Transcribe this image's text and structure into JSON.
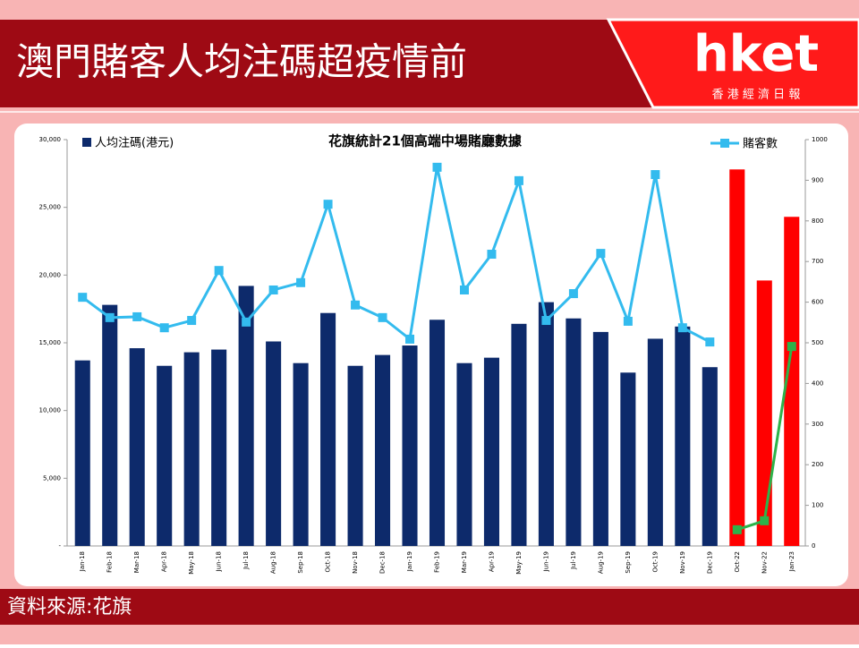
{
  "header": {
    "title": "澳門賭客人均注碼超疫情前"
  },
  "logo": {
    "name": "hket",
    "sub": "香 港 經 濟 日 報"
  },
  "footer": {
    "source": "資料來源:花旗"
  },
  "chart_data": {
    "type": "bar-line",
    "title": "花旗統計21個高端中場賭廳數據",
    "categories": [
      "Jan-18",
      "Feb-18",
      "Mar-18",
      "Apr-18",
      "May-18",
      "Jun-18",
      "Jul-18",
      "Aug-18",
      "Sep-18",
      "Oct-18",
      "Nov-18",
      "Dec-18",
      "Jan-19",
      "Feb-19",
      "Mar-19",
      "Apr-19",
      "May-19",
      "Jun-19",
      "Jul-19",
      "Aug-19",
      "Sep-19",
      "Oct-19",
      "Nov-19",
      "Dec-19",
      "Oct-22",
      "Nov-22",
      "Jan-23"
    ],
    "series": [
      {
        "name": "人均注碼(港元)",
        "type": "bar",
        "color": "#0d2a6b",
        "colors": [
          "#0d2a6b",
          "#0d2a6b",
          "#0d2a6b",
          "#0d2a6b",
          "#0d2a6b",
          "#0d2a6b",
          "#0d2a6b",
          "#0d2a6b",
          "#0d2a6b",
          "#0d2a6b",
          "#0d2a6b",
          "#0d2a6b",
          "#0d2a6b",
          "#0d2a6b",
          "#0d2a6b",
          "#0d2a6b",
          "#0d2a6b",
          "#0d2a6b",
          "#0d2a6b",
          "#0d2a6b",
          "#0d2a6b",
          "#0d2a6b",
          "#0d2a6b",
          "#0d2a6b",
          "#ff0000",
          "#ff0000",
          "#ff0000"
        ],
        "values": [
          13700,
          17800,
          14600,
          13300,
          14300,
          14500,
          19200,
          15100,
          13500,
          17200,
          13300,
          14100,
          14800,
          16700,
          13500,
          13900,
          16400,
          18000,
          16800,
          15800,
          12800,
          15300,
          16200,
          13200,
          27800,
          19600,
          24300
        ]
      },
      {
        "name": "賭客數",
        "type": "line",
        "axis": "y2",
        "color": "#33bbee",
        "values": [
          612,
          562,
          564,
          537,
          555,
          678,
          551,
          630,
          648,
          841,
          593,
          562,
          509,
          932,
          630,
          718,
          899,
          555,
          621,
          720,
          553,
          914,
          537,
          502,
          null,
          null,
          null
        ]
      },
      {
        "type": "line",
        "axis": "y2",
        "color": "#2db34a",
        "values": [
          null,
          null,
          null,
          null,
          null,
          null,
          null,
          null,
          null,
          null,
          null,
          null,
          null,
          null,
          null,
          null,
          null,
          null,
          null,
          null,
          null,
          null,
          null,
          null,
          40,
          62,
          491
        ]
      }
    ],
    "ylim": [
      0,
      30000
    ],
    "yticks": [
      {
        "value": 0,
        "label": "-"
      },
      {
        "value": 5000,
        "label": "5,000"
      },
      {
        "value": 10000,
        "label": "10,000"
      },
      {
        "value": 15000,
        "label": "15,000"
      },
      {
        "value": 20000,
        "label": "20,000"
      },
      {
        "value": 25000,
        "label": "25,000"
      },
      {
        "value": 30000,
        "label": "30,000"
      }
    ],
    "y2lim": [
      0,
      1000
    ],
    "y2ticks": [
      0,
      100,
      200,
      300,
      400,
      500,
      600,
      700,
      800,
      900,
      1000
    ]
  }
}
